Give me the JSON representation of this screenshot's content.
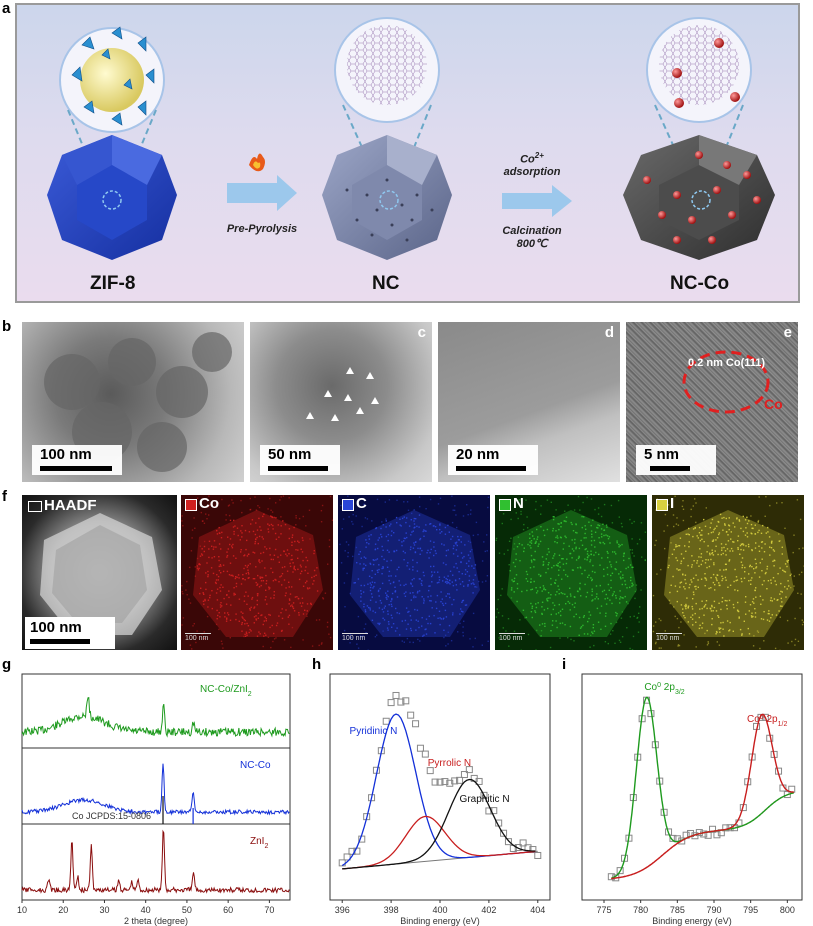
{
  "panel_letters": {
    "a": "a",
    "b": "b",
    "c": "c",
    "d": "d",
    "e": "e",
    "f": "f",
    "g": "g",
    "h": "h",
    "i": "i"
  },
  "scheme": {
    "labels": {
      "zif8": "ZIF-8",
      "nc": "NC",
      "ncco": "NC-Co"
    },
    "arrow1": {
      "text": "Pre-Pyrolysis"
    },
    "arrow2": {
      "line1_base": "Co",
      "line1_sup": "2+",
      "line2": "adsorption",
      "line3": "Calcination",
      "line4": "800℃"
    }
  },
  "tem": {
    "b": {
      "scale": "100 nm"
    },
    "c": {
      "scale": "50 nm"
    },
    "d": {
      "scale": "20 nm"
    },
    "e": {
      "scale": "5 nm",
      "lattice": "0.2 nm Co(111)",
      "region": "Co"
    }
  },
  "mapping": {
    "haadf": {
      "title": "HAADF",
      "scale": "100 nm"
    },
    "maps": [
      {
        "title": "Co",
        "scale": "100 nm",
        "color": "#d02020",
        "bg": "#3a0707"
      },
      {
        "title": "C",
        "scale": "100 nm",
        "color": "#2a45d8",
        "bg": "#070b40"
      },
      {
        "title": "N",
        "scale": "100 nm",
        "color": "#30c030",
        "bg": "#062a06"
      },
      {
        "title": "I",
        "scale": "100 nm",
        "color": "#d8d040",
        "bg": "#2e2c06"
      }
    ]
  },
  "colors": {
    "green": "#1e9a1e",
    "blue": "#1330d8",
    "darkred": "#8a0d0d",
    "red": "#c81e1e",
    "black": "#111111"
  },
  "chart_data": [
    {
      "type": "line",
      "id": "g",
      "xlabel": "2 theta (degree)",
      "xlim": [
        10,
        75
      ],
      "xticks": [
        10,
        20,
        30,
        40,
        50,
        60,
        70
      ],
      "series": [
        {
          "name": "NC-Co/ZnI",
          "name_sub": "2"
        },
        {
          "name": "NC-Co"
        },
        {
          "name": "ZnI",
          "name_sub": "2"
        }
      ],
      "reference": {
        "label": "Co JCPDS:15-0806",
        "peaks": [
          44.2,
          51.5
        ]
      },
      "peaks_green": [
        26,
        44.3,
        51.6
      ],
      "peaks_blue": [
        44.2,
        51.5
      ],
      "peaks_red": [
        16.5,
        22.1,
        23.5,
        26.8,
        33.5,
        36.6,
        38.1,
        44.3,
        51.6
      ]
    },
    {
      "type": "line",
      "id": "h",
      "xlabel": "Binding energy (eV)",
      "xlim": [
        395.5,
        404.5
      ],
      "xticks": [
        396,
        398,
        400,
        402,
        404
      ],
      "components": [
        {
          "name": "Pyridinic N",
          "center": 398.2,
          "height": 1.0
        },
        {
          "name": "Pyrrolic N",
          "center": 399.4,
          "height": 0.3
        },
        {
          "name": "Graphitic N",
          "center": 401.2,
          "height": 0.52
        }
      ]
    },
    {
      "type": "line",
      "id": "i",
      "xlabel": "Binding energy (eV)",
      "xlim": [
        772,
        802
      ],
      "xticks": [
        775,
        780,
        785,
        790,
        795,
        800
      ],
      "components": [
        {
          "name_base": "Co",
          "name_sup": "0",
          "name_mid": " 2p",
          "name_sub": "3/2",
          "center": 780.8,
          "height": 1.0
        },
        {
          "name_base": "Co",
          "name_sup": "0",
          "name_mid": " 2p",
          "name_sub": "1/2",
          "center": 796.5,
          "height": 0.58
        }
      ]
    }
  ]
}
